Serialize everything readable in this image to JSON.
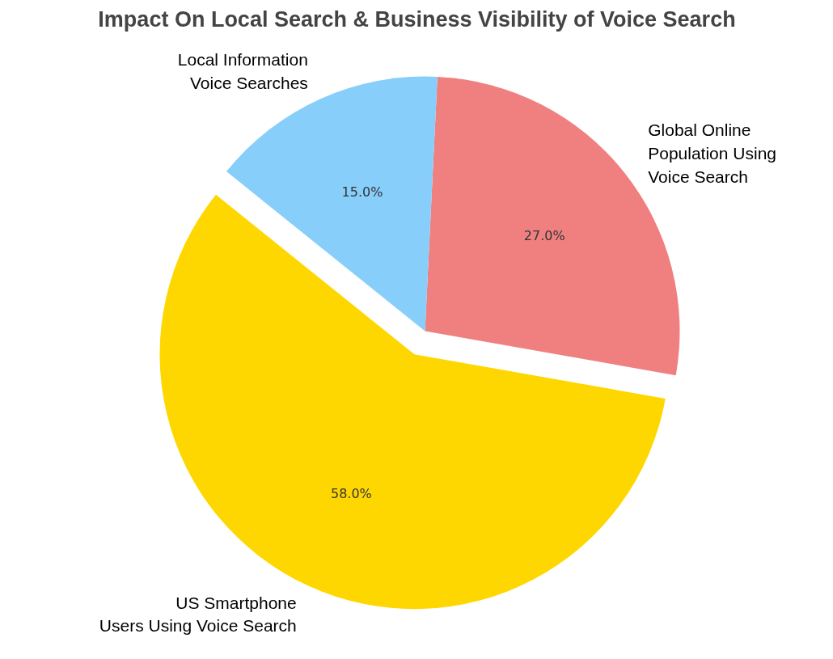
{
  "chart_data": {
    "type": "pie",
    "title": "Impact On Local Search & Business Visibility of Voice Search",
    "categories": [
      "Global Online\nPopulation Using\nVoice Search",
      "Local Information\nVoice Searches",
      "US Smartphone\nUsers Using Voice Search"
    ],
    "values": [
      27,
      15,
      58
    ],
    "colors": [
      "#f08080",
      "#87cefa",
      "#ffd700"
    ],
    "value_labels": [
      "27.0%",
      "15.0%",
      "58.0%"
    ]
  }
}
